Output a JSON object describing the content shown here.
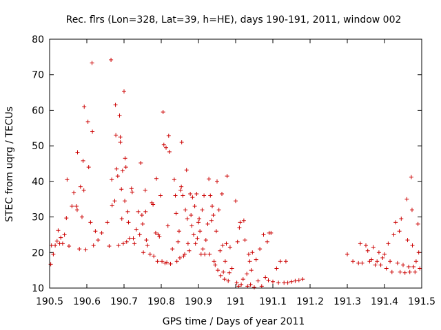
{
  "chart_data": {
    "type": "scatter",
    "title": "Rec. flrs (Lon=328, Lat=39, h=HE), days 190-191, 2011, window 002",
    "xlabel": "GPS time / Days of year 2011",
    "ylabel": "STEC from uqrg / TECUs",
    "xlim": [
      190.5,
      191.5
    ],
    "ylim": [
      10,
      80
    ],
    "xticks": [
      190.5,
      190.6,
      190.7,
      190.8,
      190.9,
      191.0,
      191.1,
      191.2,
      191.3,
      191.4,
      191.5
    ],
    "xtick_labels": [
      "190.5",
      "190.6",
      "190.7",
      "190.8",
      "190.9",
      "191",
      "191.1",
      "191.2",
      "191.3",
      "191.4",
      "191.5"
    ],
    "yticks": [
      10,
      20,
      30,
      40,
      50,
      60,
      70,
      80
    ],
    "ytick_labels": [
      "10",
      "20",
      "30",
      "40",
      "50",
      "60",
      "70",
      "80"
    ],
    "grid": false,
    "marker": "+",
    "color": "#cc0000",
    "series": [
      {
        "name": "STEC",
        "points": [
          [
            190.503,
            16.7
          ],
          [
            190.505,
            22.0
          ],
          [
            190.51,
            19.5
          ],
          [
            190.515,
            22.0
          ],
          [
            190.52,
            23.2
          ],
          [
            190.523,
            26.2
          ],
          [
            190.527,
            22.5
          ],
          [
            190.53,
            24.2
          ],
          [
            190.535,
            22.5
          ],
          [
            190.54,
            25.0
          ],
          [
            190.545,
            29.7
          ],
          [
            190.547,
            40.5
          ],
          [
            190.552,
            21.8
          ],
          [
            190.56,
            33.0
          ],
          [
            190.565,
            36.8
          ],
          [
            190.572,
            33.0
          ],
          [
            190.574,
            32.0
          ],
          [
            190.575,
            48.2
          ],
          [
            190.58,
            21.0
          ],
          [
            190.583,
            38.5
          ],
          [
            190.587,
            30.0
          ],
          [
            190.59,
            45.8
          ],
          [
            190.592,
            37.5
          ],
          [
            190.593,
            61.0
          ],
          [
            190.597,
            20.8
          ],
          [
            190.603,
            56.8
          ],
          [
            190.605,
            44.0
          ],
          [
            190.61,
            28.5
          ],
          [
            190.614,
            73.3
          ],
          [
            190.615,
            54.0
          ],
          [
            190.618,
            22.0
          ],
          [
            190.623,
            26.0
          ],
          [
            190.63,
            23.5
          ],
          [
            190.64,
            25.5
          ],
          [
            190.655,
            28.5
          ],
          [
            190.66,
            21.8
          ],
          [
            190.665,
            74.2
          ],
          [
            190.667,
            40.5
          ],
          [
            190.668,
            33.3
          ],
          [
            190.675,
            34.5
          ],
          [
            190.677,
            61.5
          ],
          [
            190.678,
            53.0
          ],
          [
            190.68,
            43.5
          ],
          [
            190.683,
            41.5
          ],
          [
            190.685,
            22.0
          ],
          [
            190.688,
            58.5
          ],
          [
            190.69,
            52.5
          ],
          [
            190.69,
            51.0
          ],
          [
            190.693,
            37.8
          ],
          [
            190.694,
            29.5
          ],
          [
            190.696,
            43.0
          ],
          [
            190.698,
            22.5
          ],
          [
            190.7,
            65.3
          ],
          [
            190.702,
            34.5
          ],
          [
            190.703,
            46.5
          ],
          [
            190.705,
            44.0
          ],
          [
            190.707,
            23.0
          ],
          [
            190.71,
            31.5
          ],
          [
            190.712,
            28.5
          ],
          [
            190.715,
            24.0
          ],
          [
            190.72,
            38.0
          ],
          [
            190.722,
            37.0
          ],
          [
            190.725,
            24.0
          ],
          [
            190.728,
            22.5
          ],
          [
            190.733,
            26.5
          ],
          [
            190.738,
            31.5
          ],
          [
            190.742,
            25.0
          ],
          [
            190.745,
            45.2
          ],
          [
            190.748,
            30.5
          ],
          [
            190.75,
            28.0
          ],
          [
            190.752,
            20.0
          ],
          [
            190.757,
            37.5
          ],
          [
            190.758,
            31.5
          ],
          [
            190.76,
            23.5
          ],
          [
            190.763,
            22.0
          ],
          [
            190.77,
            19.5
          ],
          [
            190.775,
            34.0
          ],
          [
            190.778,
            33.5
          ],
          [
            190.78,
            19.0
          ],
          [
            190.785,
            25.5
          ],
          [
            190.787,
            40.8
          ],
          [
            190.79,
            17.5
          ],
          [
            190.792,
            25.0
          ],
          [
            190.795,
            24.5
          ],
          [
            190.798,
            36.0
          ],
          [
            190.802,
            17.5
          ],
          [
            190.805,
            59.5
          ],
          [
            190.807,
            50.3
          ],
          [
            190.81,
            17.0
          ],
          [
            190.813,
            49.5
          ],
          [
            190.815,
            17.2
          ],
          [
            190.818,
            27.5
          ],
          [
            190.82,
            52.8
          ],
          [
            190.822,
            48.3
          ],
          [
            190.825,
            16.8
          ],
          [
            190.83,
            21.0
          ],
          [
            190.835,
            40.5
          ],
          [
            190.838,
            36.0
          ],
          [
            190.84,
            31.0
          ],
          [
            190.842,
            17.5
          ],
          [
            190.845,
            23.0
          ],
          [
            190.848,
            26.0
          ],
          [
            190.85,
            18.5
          ],
          [
            190.852,
            37.5
          ],
          [
            190.854,
            38.5
          ],
          [
            190.855,
            51.0
          ],
          [
            190.858,
            36.0
          ],
          [
            190.86,
            19.0
          ],
          [
            190.863,
            19.5
          ],
          [
            190.865,
            32.0
          ],
          [
            190.868,
            43.2
          ],
          [
            190.87,
            29.5
          ],
          [
            190.872,
            22.5
          ],
          [
            190.875,
            20.5
          ],
          [
            190.878,
            36.5
          ],
          [
            190.88,
            30.5
          ],
          [
            190.882,
            27.5
          ],
          [
            190.884,
            35.5
          ],
          [
            190.887,
            25.0
          ],
          [
            190.89,
            33.0
          ],
          [
            190.892,
            22.5
          ],
          [
            190.895,
            36.5
          ],
          [
            190.897,
            24.0
          ],
          [
            190.9,
            28.5
          ],
          [
            190.902,
            29.5
          ],
          [
            190.904,
            26.0
          ],
          [
            190.907,
            19.5
          ],
          [
            190.91,
            32.0
          ],
          [
            190.912,
            21.0
          ],
          [
            190.915,
            36.0
          ],
          [
            190.917,
            19.5
          ],
          [
            190.92,
            23.5
          ],
          [
            190.925,
            28.0
          ],
          [
            190.928,
            40.7
          ],
          [
            190.93,
            19.5
          ],
          [
            190.932,
            36.0
          ],
          [
            190.935,
            29.0
          ],
          [
            190.937,
            33.0
          ],
          [
            190.94,
            30.5
          ],
          [
            190.942,
            17.5
          ],
          [
            190.945,
            16.5
          ],
          [
            190.948,
            26.0
          ],
          [
            190.95,
            40.0
          ],
          [
            190.952,
            15.0
          ],
          [
            190.955,
            32.0
          ],
          [
            190.958,
            20.5
          ],
          [
            190.96,
            13.5
          ],
          [
            190.963,
            36.5
          ],
          [
            190.965,
            22.0
          ],
          [
            190.967,
            14.5
          ],
          [
            190.97,
            12.5
          ],
          [
            190.972,
            17.5
          ],
          [
            190.975,
            22.5
          ],
          [
            190.977,
            41.5
          ],
          [
            190.98,
            12.0
          ],
          [
            190.983,
            14.3
          ],
          [
            190.985,
            21.5
          ],
          [
            190.99,
            15.5
          ],
          [
            191.0,
            34.5
          ],
          [
            191.003,
            11.5
          ],
          [
            191.005,
            23.0
          ],
          [
            191.008,
            10.5
          ],
          [
            191.01,
            27.0
          ],
          [
            191.012,
            28.5
          ],
          [
            191.015,
            11.0
          ],
          [
            191.02,
            12.5
          ],
          [
            191.022,
            29.0
          ],
          [
            191.025,
            23.5
          ],
          [
            191.03,
            14.0
          ],
          [
            191.032,
            10.5
          ],
          [
            191.035,
            19.5
          ],
          [
            191.038,
            17.5
          ],
          [
            191.04,
            11.0
          ],
          [
            191.042,
            15.0
          ],
          [
            191.045,
            20.0
          ],
          [
            191.05,
            10.2
          ],
          [
            191.055,
            18.0
          ],
          [
            191.06,
            12.0
          ],
          [
            191.065,
            21.0
          ],
          [
            191.07,
            10.5
          ],
          [
            191.075,
            25.0
          ],
          [
            191.08,
            13.0
          ],
          [
            191.085,
            23.0
          ],
          [
            191.088,
            12.2
          ],
          [
            191.09,
            25.5
          ],
          [
            191.095,
            25.5
          ],
          [
            191.1,
            11.8
          ],
          [
            191.11,
            15.5
          ],
          [
            191.115,
            11.5
          ],
          [
            191.12,
            17.5
          ],
          [
            191.13,
            11.5
          ],
          [
            191.135,
            17.5
          ],
          [
            191.14,
            11.5
          ],
          [
            191.15,
            11.8
          ],
          [
            191.16,
            12.0
          ],
          [
            191.17,
            12.2
          ],
          [
            191.18,
            12.5
          ],
          [
            191.3,
            19.5
          ],
          [
            191.315,
            17.5
          ],
          [
            191.33,
            17.0
          ],
          [
            191.335,
            22.5
          ],
          [
            191.34,
            17.0
          ],
          [
            191.35,
            22.0
          ],
          [
            191.355,
            20.5
          ],
          [
            191.36,
            17.5
          ],
          [
            191.365,
            18.0
          ],
          [
            191.37,
            21.5
          ],
          [
            191.375,
            16.5
          ],
          [
            191.38,
            17.5
          ],
          [
            191.385,
            20.0
          ],
          [
            191.39,
            16.5
          ],
          [
            191.395,
            18.5
          ],
          [
            191.4,
            19.5
          ],
          [
            191.405,
            15.5
          ],
          [
            191.41,
            22.5
          ],
          [
            191.415,
            17.5
          ],
          [
            191.42,
            14.5
          ],
          [
            191.425,
            25.0
          ],
          [
            191.43,
            28.5
          ],
          [
            191.435,
            17.0
          ],
          [
            191.44,
            26.0
          ],
          [
            191.442,
            14.5
          ],
          [
            191.445,
            29.5
          ],
          [
            191.45,
            16.5
          ],
          [
            191.455,
            14.3
          ],
          [
            191.46,
            35.0
          ],
          [
            191.462,
            23.5
          ],
          [
            191.465,
            16.0
          ],
          [
            191.468,
            14.5
          ],
          [
            191.472,
            41.2
          ],
          [
            191.474,
            32.0
          ],
          [
            191.475,
            22.0
          ],
          [
            191.478,
            16.0
          ],
          [
            191.482,
            14.5
          ],
          [
            191.485,
            17.5
          ],
          [
            191.49,
            28.0
          ],
          [
            191.492,
            20.0
          ],
          [
            191.495,
            15.5
          ]
        ]
      }
    ]
  }
}
